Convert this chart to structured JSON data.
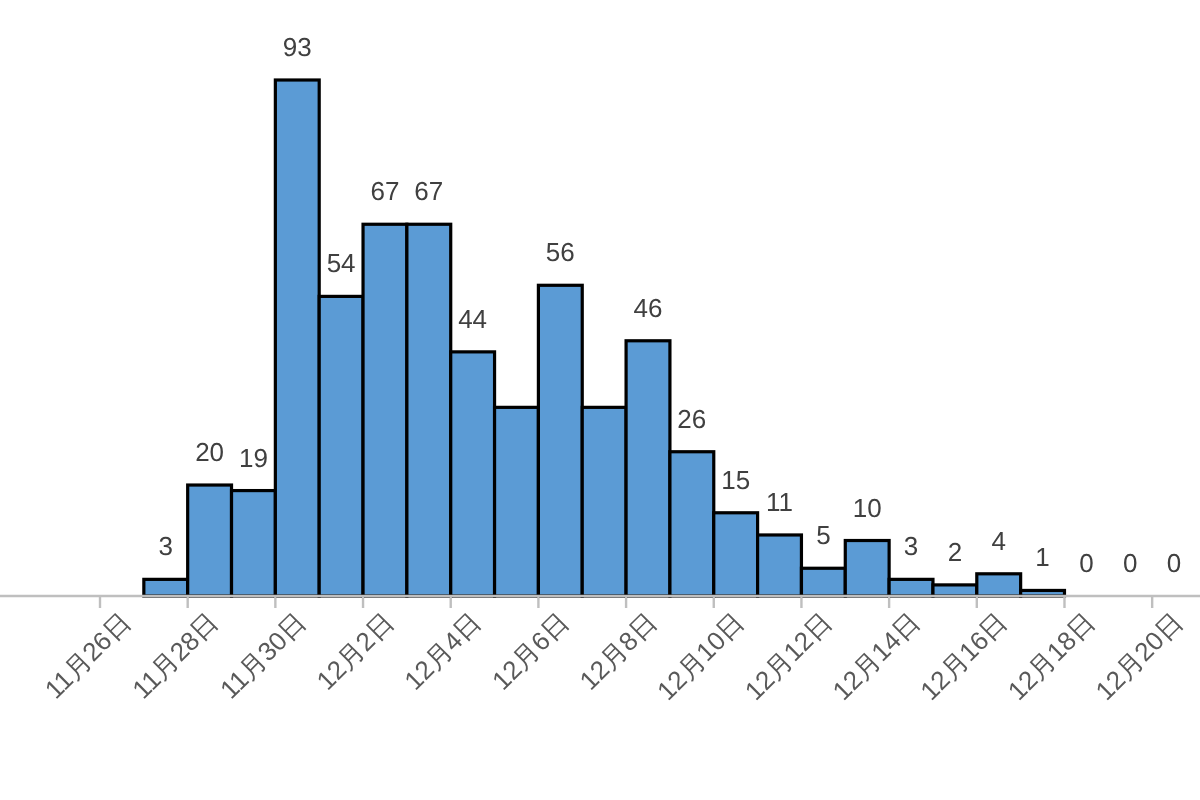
{
  "chart_data": {
    "type": "bar",
    "categories": [
      "11月26日",
      null,
      "11月28日",
      null,
      "11月30日",
      null,
      "12月2日",
      null,
      "12月4日",
      null,
      "12月6日",
      null,
      "12月8日",
      null,
      "12月10日",
      null,
      "12月12日",
      null,
      "12月14日",
      null,
      "12月16日",
      null,
      "12月18日",
      null,
      "12月20日"
    ],
    "values": [
      null,
      3,
      20,
      19,
      93,
      54,
      67,
      67,
      44,
      34,
      56,
      34,
      46,
      26,
      15,
      11,
      5,
      10,
      3,
      2,
      4,
      1,
      0,
      0,
      0
    ],
    "value_labels": [
      null,
      "3",
      "20",
      "19",
      "93",
      "54",
      "67",
      "67",
      "44",
      null,
      "56",
      null,
      "46",
      "26",
      "15",
      "11",
      "5",
      "10",
      "3",
      "2",
      "4",
      "1",
      "0",
      "0",
      "0"
    ],
    "color": "#5b9bd5",
    "grid": false,
    "legend": false
  }
}
